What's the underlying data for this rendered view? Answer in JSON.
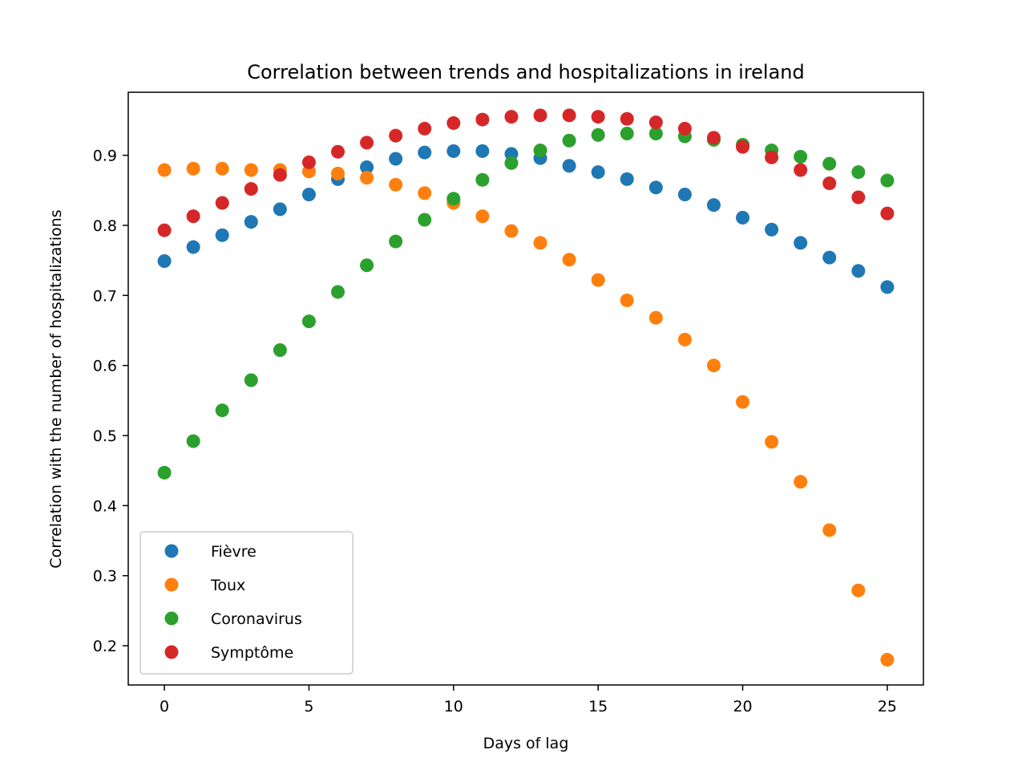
{
  "chart_data": {
    "type": "scatter",
    "title": "Correlation between trends and hospitalizations in ireland",
    "xlabel": "Days of lag",
    "ylabel": "Correlation with the number of hospitalizations",
    "xlim": [
      -1.25,
      26.25
    ],
    "ylim": [
      0.144,
      0.99
    ],
    "xticks": [
      0,
      5,
      10,
      15,
      20,
      25
    ],
    "yticks": [
      0.2,
      0.3,
      0.4,
      0.5,
      0.6,
      0.7,
      0.8,
      0.9
    ],
    "xtick_labels": [
      "0",
      "5",
      "10",
      "15",
      "20",
      "25"
    ],
    "ytick_labels": [
      "0.2",
      "0.3",
      "0.4",
      "0.5",
      "0.6",
      "0.7",
      "0.8",
      "0.9"
    ],
    "grid": false,
    "legend_position": "lower-left",
    "x": [
      0,
      1,
      2,
      3,
      4,
      5,
      6,
      7,
      8,
      9,
      10,
      11,
      12,
      13,
      14,
      15,
      16,
      17,
      18,
      19,
      20,
      21,
      22,
      23,
      24,
      25
    ],
    "series": [
      {
        "name": "Fièvre",
        "color": "#1f77b4",
        "values": [
          0.749,
          0.769,
          0.786,
          0.805,
          0.823,
          0.844,
          0.866,
          0.883,
          0.895,
          0.904,
          0.906,
          0.906,
          0.902,
          0.896,
          0.885,
          0.876,
          0.866,
          0.854,
          0.844,
          0.829,
          0.811,
          0.794,
          0.775,
          0.754,
          0.735,
          0.712
        ]
      },
      {
        "name": "Toux",
        "color": "#ff7f0e",
        "values": [
          0.879,
          0.881,
          0.881,
          0.879,
          0.879,
          0.877,
          0.874,
          0.868,
          0.858,
          0.846,
          0.832,
          0.813,
          0.792,
          0.775,
          0.751,
          0.722,
          0.693,
          0.668,
          0.637,
          0.6,
          0.548,
          0.491,
          0.434,
          0.365,
          0.279,
          0.18
        ]
      },
      {
        "name": "Coronavirus",
        "color": "#2ca02c",
        "values": [
          0.447,
          0.492,
          0.536,
          0.579,
          0.622,
          0.663,
          0.705,
          0.743,
          0.777,
          0.808,
          0.838,
          0.865,
          0.889,
          0.907,
          0.921,
          0.929,
          0.931,
          0.931,
          0.927,
          0.922,
          0.915,
          0.907,
          0.898,
          0.888,
          0.876,
          0.864
        ]
      },
      {
        "name": "Symptôme",
        "color": "#d62728",
        "values": [
          0.793,
          0.813,
          0.832,
          0.852,
          0.872,
          0.89,
          0.905,
          0.918,
          0.928,
          0.938,
          0.946,
          0.951,
          0.955,
          0.957,
          0.957,
          0.955,
          0.952,
          0.947,
          0.938,
          0.925,
          0.912,
          0.897,
          0.879,
          0.86,
          0.84,
          0.817
        ]
      }
    ]
  }
}
